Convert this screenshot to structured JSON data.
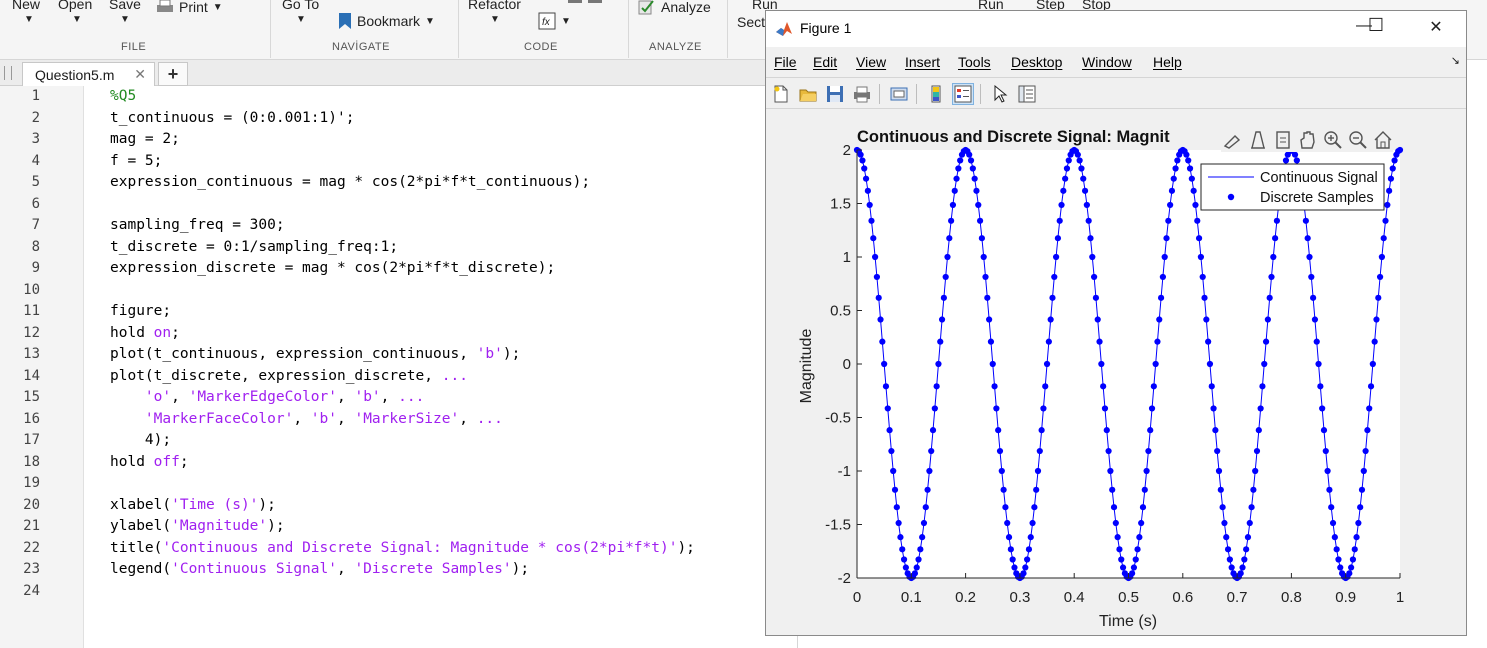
{
  "toolstrip": {
    "top_labels": [
      "New",
      "Open",
      "Save",
      "Go To",
      "Refactor",
      "Run",
      "Run",
      "Step",
      "Stop"
    ],
    "print_label": "Print",
    "bookmark_label": "Bookmark",
    "analyze_label": "Analyze",
    "sect_label": "Sect",
    "sections": {
      "file": "FILE",
      "navigate": "NAVİGATE",
      "code": "CODE",
      "analyze": "ANALYZE"
    }
  },
  "editor": {
    "tab_label": "Question5.m",
    "close_glyph": "✕",
    "add_glyph": "+",
    "line_numbers": [
      "1",
      "2",
      "3",
      "4",
      "5",
      "6",
      "7",
      "8",
      "9",
      "10",
      "11",
      "12",
      "13",
      "14",
      "15",
      "16",
      "17",
      "18",
      "19",
      "20",
      "21",
      "22",
      "23",
      "24"
    ],
    "lines": [
      "%Q5",
      "t_continuous = (0:0.001:1)';",
      "mag = 2;",
      "f = 5;",
      "expression_continuous = mag * cos(2*pi*f*t_continuous);",
      "",
      "sampling_freq = 300;",
      "t_discrete = 0:1/sampling_freq:1;",
      "expression_discrete = mag * cos(2*pi*f*t_discrete);",
      "",
      "figure;",
      "hold on;",
      "plot(t_continuous, expression_continuous, 'b');",
      "plot(t_discrete, expression_discrete, ...",
      "    'o', 'MarkerEdgeColor', 'b', ...",
      "    'MarkerFaceColor', 'b', 'MarkerSize', ...",
      "    4);",
      "hold off;",
      "",
      "xlabel('Time (s)');",
      "ylabel('Magnitude');",
      "title('Continuous and Discrete Signal: Magnitude * cos(2*pi*f*t)');",
      "legend('Continuous Signal', 'Discrete Samples');",
      ""
    ]
  },
  "figure_window": {
    "title": "Figure 1",
    "minimize": "—",
    "maximize": "☐",
    "close": "✕",
    "menu": [
      "File",
      "Edit",
      "View",
      "Insert",
      "Tools",
      "Desktop",
      "Window",
      "Help"
    ],
    "toolbar_icons": [
      "new-figure-icon",
      "open-file-icon",
      "save-icon",
      "print-icon",
      "print-preview-icon",
      "colorbar-icon",
      "legend-icon",
      "pointer-icon",
      "property-editor-icon"
    ],
    "axes_toolbar_icons": [
      "brush-icon",
      "data-tips-icon",
      "restore-view-icon",
      "pan-icon",
      "zoom-in-icon",
      "zoom-out-icon",
      "home-icon"
    ]
  },
  "chart_data": {
    "type": "line",
    "title": "Continuous and Discrete Signal: Magnit",
    "xlabel": "Time (s)",
    "ylabel": "Magnitude",
    "xlim": [
      0,
      1
    ],
    "ylim": [
      -2,
      2
    ],
    "xticks": [
      "0",
      "0.1",
      "0.2",
      "0.3",
      "0.4",
      "0.5",
      "0.6",
      "0.7",
      "0.8",
      "0.9",
      "1"
    ],
    "yticks": [
      "2",
      "1.5",
      "1",
      "0.5",
      "0",
      "-0.5",
      "-1",
      "-1.5",
      "-2"
    ],
    "grid": false,
    "legend_position": "top-right",
    "series": [
      {
        "name": "Continuous Signal",
        "style": "line",
        "color": "#0000ff",
        "function": "2*cos(2*pi*5*t)",
        "x_start": 0,
        "x_end": 1,
        "x_step": 0.001
      },
      {
        "name": "Discrete Samples",
        "style": "markers",
        "color": "#0000ff",
        "function": "2*cos(2*pi*5*t)",
        "x_start": 0,
        "x_end": 1,
        "sampling_rate": 300
      }
    ]
  }
}
